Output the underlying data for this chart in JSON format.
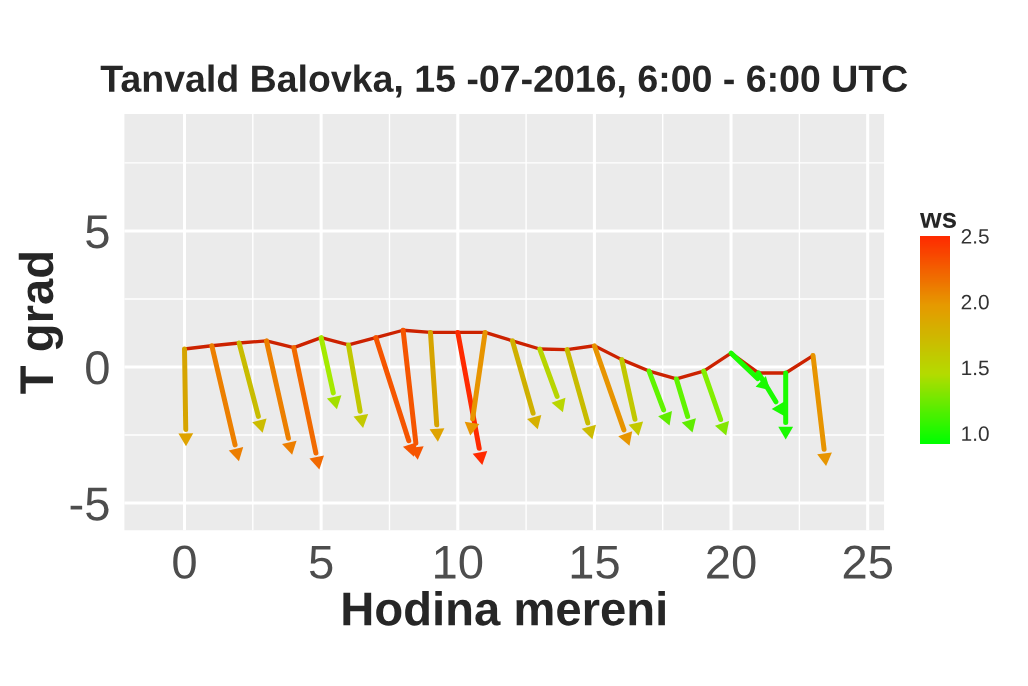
{
  "chart_data": {
    "type": "line",
    "title": "Tanvald Balovka, 15 -07-2016, 6:00 - 6:00 UTC",
    "xlabel": "Hodina mereni",
    "ylabel": "T grad",
    "clabel": "ws",
    "xlim": [
      -2.2,
      25.6
    ],
    "ylim": [
      -6.0,
      9.3
    ],
    "xticks": [
      0,
      5,
      10,
      15,
      20,
      25
    ],
    "yticks": [
      -5,
      0,
      5
    ],
    "grid": true,
    "clim": [
      0.92,
      2.5
    ],
    "cticks": [
      {
        "value": 1,
        "label": "1.0"
      },
      1.5,
      {
        "value": 2,
        "label": "2.0"
      },
      2.5
    ],
    "series": [
      {
        "color": "#cc2200",
        "x": [
          0,
          1,
          2,
          3,
          4,
          5,
          6,
          7,
          8,
          9,
          10,
          11,
          12,
          13,
          14,
          15,
          16,
          17,
          18,
          19,
          20,
          21,
          22,
          23
        ],
        "values": [
          0.66,
          0.78,
          0.88,
          0.96,
          0.71,
          1.08,
          0.81,
          1.08,
          1.35,
          1.27,
          1.27,
          1.27,
          0.96,
          0.66,
          0.64,
          0.78,
          0.27,
          -0.15,
          -0.44,
          -0.15,
          0.51,
          -0.22,
          -0.22,
          0.42
        ]
      },
      {
        "type": "scatter",
        "x": [
          0.05,
          1.92,
          2.78,
          3.87,
          4.87,
          5.51,
          6.48,
          8.3,
          8.5,
          9.25,
          10.84,
          10.5,
          12.84,
          13.74,
          14.84,
          16.18,
          16.55,
          17.64,
          18.5,
          19.72,
          21.2,
          21.8,
          22.0,
          23.44
        ],
        "values": [
          -2.6,
          -3.16,
          -2.11,
          -2.92,
          -3.46,
          -1.25,
          -1.93,
          -3.0,
          -3.1,
          -2.43,
          -3.29,
          -2.21,
          -1.99,
          -1.37,
          -2.35,
          -2.6,
          -2.22,
          -1.86,
          -2.11,
          -2.22,
          -0.64,
          -1.54,
          -2.35,
          -3.33
        ],
        "colors": [
          "#d6a400",
          "#ec7f00",
          "#c8bc00",
          "#ec7f00",
          "#f16a00",
          "#a4ea00",
          "#c1c800",
          "#f55500",
          "#f55500",
          "#d6a400",
          "#ff2a00",
          "#e79400",
          "#cfb000",
          "#b7d500",
          "#c8bc00",
          "#e79400",
          "#c1c800",
          "#60f400",
          "#60f400",
          "#82ef00",
          "#1bfc00",
          "#1bfc00",
          "#1bfc00",
          "#e79400"
        ],
        "cvalues": [
          1.9,
          2.1,
          1.7,
          2.1,
          2.2,
          1.4,
          1.6,
          2.3,
          2.3,
          1.9,
          2.5,
          2.0,
          1.8,
          1.5,
          1.7,
          2.0,
          1.6,
          1.2,
          1.2,
          1.3,
          1.0,
          1.0,
          1.0,
          2.0
        ]
      }
    ]
  }
}
